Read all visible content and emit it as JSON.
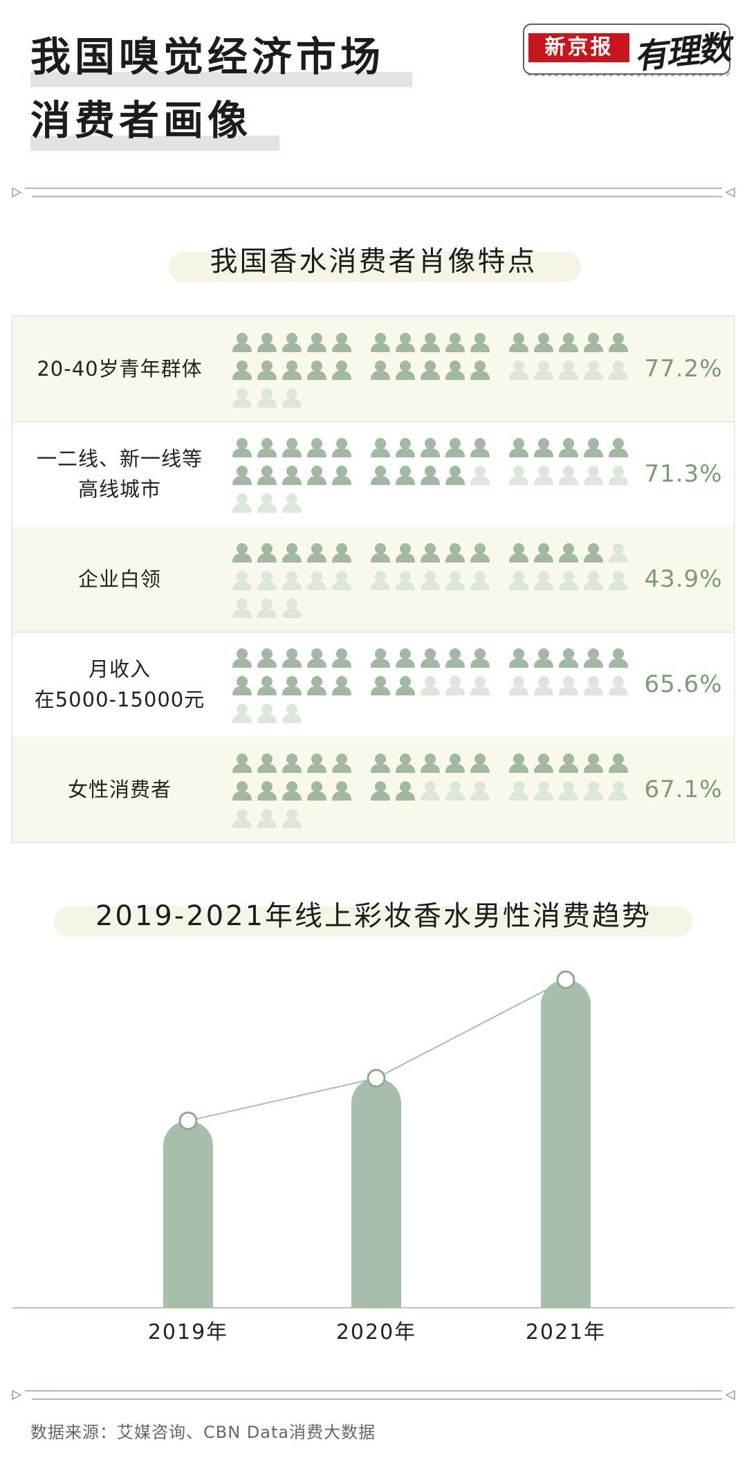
{
  "header": {
    "title_line1": "我国嗅觉经济市场",
    "title_line2": "消费者画像",
    "logo_brand": "新京报",
    "logo_script": "有理数",
    "colors": {
      "accent_green": "#a1b8a1",
      "percent_green": "#7a9c73",
      "brand_red": "#c8161d"
    }
  },
  "portrait_section": {
    "heading": "我国香水消费者肖像特点",
    "rows": [
      {
        "label_lines": [
          "20-40岁青年群体"
        ],
        "percent": "77.2%",
        "value": 77.2
      },
      {
        "label_lines": [
          "一二线、新一线等",
          "高线城市"
        ],
        "percent": "71.3%",
        "value": 71.3
      },
      {
        "label_lines": [
          "企业白领"
        ],
        "percent": "43.9%",
        "value": 43.9
      },
      {
        "label_lines": [
          "月收入",
          "在5000-15000元"
        ],
        "percent": "65.6%",
        "value": 65.6
      },
      {
        "label_lines": [
          "女性消费者"
        ],
        "percent": "67.1%",
        "value": 67.1
      }
    ]
  },
  "trend_section": {
    "heading": "2019-2021年线上彩妆香水男性消费趋势"
  },
  "chart_data": {
    "type": "bar",
    "title": "2019-2021年线上彩妆香水男性消费趋势",
    "categories": [
      "2019年",
      "2020年",
      "2021年"
    ],
    "values": [
      57,
      70,
      100
    ],
    "xlabel": "",
    "ylabel": "",
    "ylim": [
      0,
      100
    ],
    "grid": false,
    "legend": "none",
    "overlay": "line with circle markers at bar tops"
  },
  "footer": {
    "source": "数据来源：艾媒咨询、CBN Data消费大数据"
  }
}
